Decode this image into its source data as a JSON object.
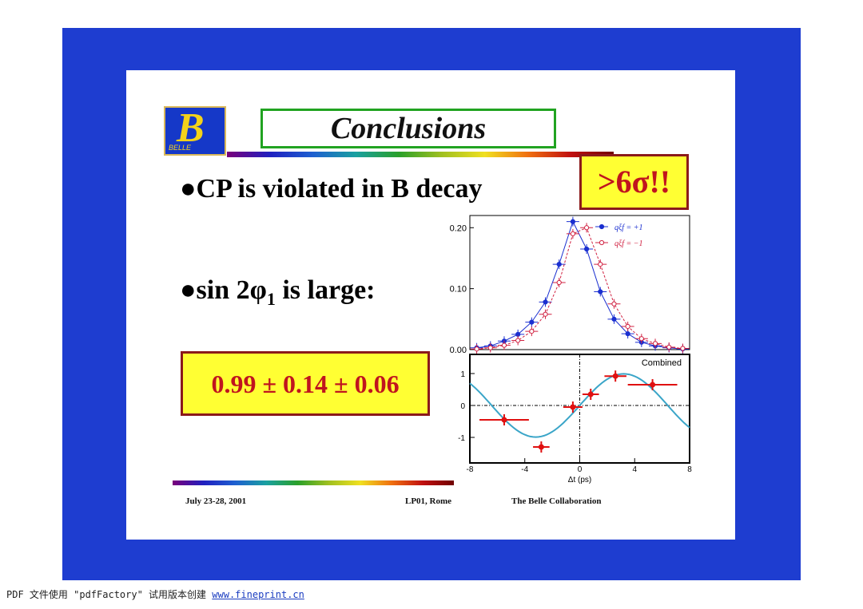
{
  "slide": {
    "logo": {
      "letter": "B",
      "subtext": "BELLE"
    },
    "title": "Conclusions",
    "bullets": [
      {
        "text": "CP is violated in B decay"
      },
      {
        "text_pre": "sin 2φ",
        "subscript": "1",
        "text_post": " is large:"
      }
    ],
    "bullet_symbol": "●",
    "significance": ">6σ!!",
    "result": "0.99 ± 0.14 ± 0.06",
    "footer": {
      "date": "July 23-28, 2001",
      "venue": "LP01,  Rome",
      "collaboration": "The Belle Collaboration"
    }
  },
  "chart_data": [
    {
      "type": "scatter",
      "title": "",
      "y_ticks": [
        "0.20",
        "0.10",
        "0.00"
      ],
      "ylim": [
        0,
        0.22
      ],
      "xlim": [
        -8,
        8
      ],
      "legend": [
        "qξf = +1",
        "qξf = −1"
      ],
      "legend_position": "top-right",
      "series": [
        {
          "name": "qξf = +1",
          "color": "#1a2fd0",
          "x": [
            -7.5,
            -6.5,
            -5.5,
            -4.5,
            -3.5,
            -2.5,
            -1.5,
            -0.5,
            0.5,
            1.5,
            2.5,
            3.5,
            4.5,
            5.5,
            6.5,
            7.5
          ],
          "y": [
            0.003,
            0.006,
            0.014,
            0.025,
            0.045,
            0.078,
            0.14,
            0.21,
            0.165,
            0.095,
            0.05,
            0.026,
            0.012,
            0.006,
            0.003,
            0.001
          ]
        },
        {
          "name": "qξf = −1",
          "color": "#d02040",
          "x": [
            -7.5,
            -6.5,
            -5.5,
            -4.5,
            -3.5,
            -2.5,
            -1.5,
            -0.5,
            0.5,
            1.5,
            2.5,
            3.5,
            4.5,
            5.5,
            6.5,
            7.5
          ],
          "y": [
            0.001,
            0.003,
            0.007,
            0.015,
            0.03,
            0.058,
            0.11,
            0.19,
            0.2,
            0.14,
            0.075,
            0.038,
            0.018,
            0.01,
            0.004,
            0.002
          ]
        }
      ]
    },
    {
      "type": "scatter",
      "title": "Combined",
      "x_ticks": [
        "-8",
        "-4",
        "0",
        "4",
        "8"
      ],
      "y_ticks": [
        "1",
        "0",
        "-1"
      ],
      "xlabel": "Δt (ps)",
      "xlim": [
        -8,
        8
      ],
      "ylim": [
        -1.8,
        1.6
      ],
      "series": [
        {
          "name": "",
          "color": "#e01010",
          "x": [
            -5.5,
            -2.8,
            -0.5,
            0.8,
            2.6,
            5.3
          ],
          "y": [
            -0.45,
            -1.3,
            -0.05,
            0.35,
            0.92,
            0.65
          ],
          "xerr": [
            1.8,
            0.6,
            0.7,
            0.6,
            0.8,
            1.8
          ]
        }
      ]
    }
  ],
  "pdf_notice": {
    "text": "PDF 文件使用 \"pdfFactory\" 试用版本创建 ",
    "link": "www.fineprint.cn"
  }
}
